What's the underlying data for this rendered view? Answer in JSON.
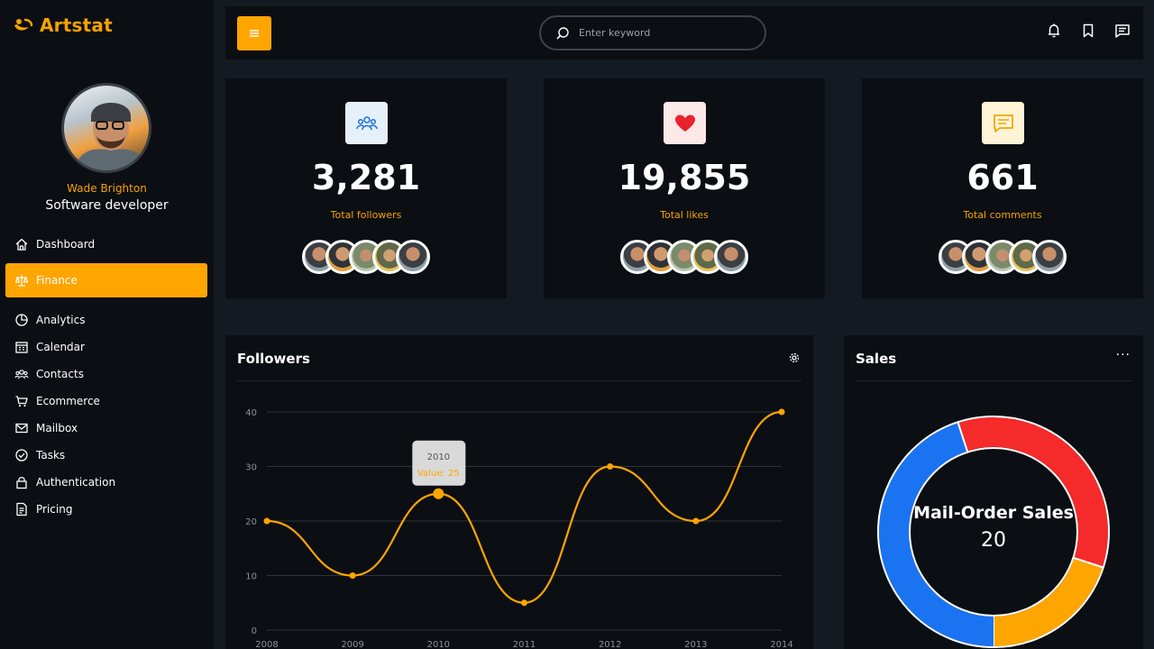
{
  "brand": {
    "name": "Artstat",
    "accent": "#ffa500"
  },
  "profile": {
    "name": "Wade Brighton",
    "role": "Software developer"
  },
  "nav": [
    {
      "label": "Dashboard",
      "icon": "home-icon",
      "active": false
    },
    {
      "label": "Finance",
      "icon": "scale-icon",
      "active": true
    },
    {
      "label": "Analytics",
      "icon": "pie-chart-icon",
      "active": false
    },
    {
      "label": "Calendar",
      "icon": "calendar-icon",
      "active": false
    },
    {
      "label": "Contacts",
      "icon": "contacts-icon",
      "active": false
    },
    {
      "label": "Ecommerce",
      "icon": "cart-icon",
      "active": false
    },
    {
      "label": "Mailbox",
      "icon": "mail-icon",
      "active": false
    },
    {
      "label": "Tasks",
      "icon": "check-circle-icon",
      "active": false
    },
    {
      "label": "Authentication",
      "icon": "lock-icon",
      "active": false
    },
    {
      "label": "Pricing",
      "icon": "receipt-icon",
      "active": false
    }
  ],
  "search": {
    "placeholder": "Enter keyword"
  },
  "topbar": {
    "icons": [
      "bell-icon",
      "bookmark-icon",
      "message-icon"
    ]
  },
  "stats": [
    {
      "value": "3,281",
      "label": "Total followers",
      "icon": "users-icon",
      "icon_bg": "#e6f0fb",
      "icon_color": "#1e6fe0"
    },
    {
      "value": "19,855",
      "label": "Total likes",
      "icon": "heart-icon",
      "icon_bg": "#fde8e8",
      "icon_color": "#e8232d"
    },
    {
      "value": "661",
      "label": "Total comments",
      "icon": "comment-icon",
      "icon_bg": "#fff4d6",
      "icon_color": "#f5a300"
    }
  ],
  "followers": {
    "title": "Followers",
    "tooltip": {
      "title": "2010",
      "text": "Value: 25"
    }
  },
  "sales": {
    "title": "Sales",
    "center_label": "Mail-Order Sales",
    "center_value": "20"
  },
  "chart_data": [
    {
      "type": "line",
      "title": "Followers",
      "x": [
        "2008",
        "2009",
        "2010",
        "2011",
        "2012",
        "2013",
        "2014"
      ],
      "series": [
        {
          "values": [
            20,
            10,
            25,
            5,
            30,
            20,
            40
          ],
          "color": "#ffa500"
        }
      ],
      "ylim": [
        0,
        40
      ],
      "yticks": [
        0,
        10,
        20,
        30,
        40
      ],
      "grid": true,
      "highlight_index": 2
    },
    {
      "type": "pie",
      "title": "Sales",
      "donut": true,
      "slices": [
        {
          "name": "Mail-Order Sales",
          "value": 20,
          "color": "#ffa500"
        },
        {
          "value": 35,
          "color": "#f52a2a"
        },
        {
          "value": 45,
          "color": "#1a73f0"
        }
      ]
    }
  ]
}
